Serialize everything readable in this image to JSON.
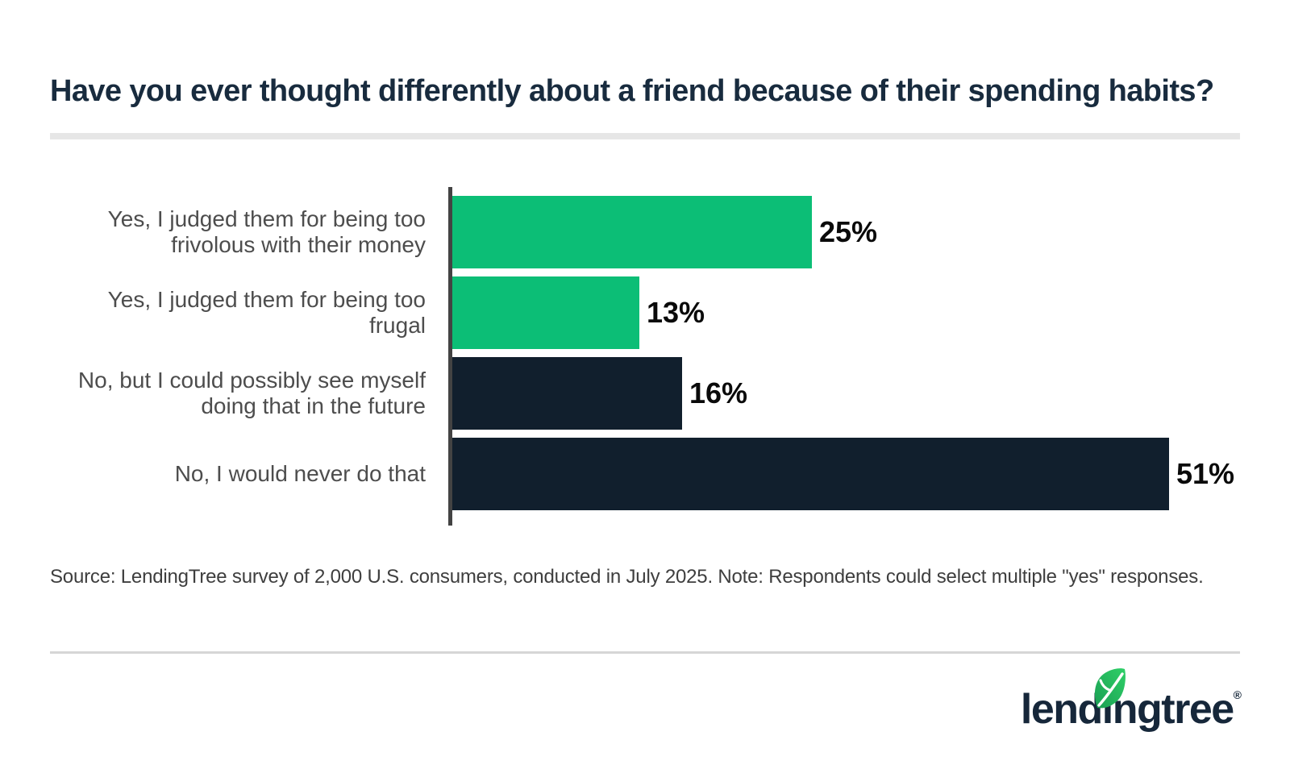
{
  "title": "Have you ever thought differently about a friend because of their spending habits?",
  "source_note": "Source: LendingTree survey of 2,000 U.S. consumers, conducted in July 2025. Note: Respondents could select multiple \"yes\" responses.",
  "logo": {
    "text": "lendingtree",
    "registered_mark": "®",
    "leaf_icon": "leaf-icon"
  },
  "colors": {
    "bar_green": "#0CBE76",
    "bar_navy": "#111F2D",
    "title_navy": "#182B3E",
    "category_label_gray": "#4D4D4D",
    "axis_gray": "#434343",
    "divider_light_gray": "#E6E6E6",
    "divider_thin_gray": "#D6D6D6",
    "value_label_black": "#0A0A0A",
    "logo_navy": "#16273A",
    "leaf_green_dark": "#1A9E53",
    "leaf_green_light": "#2FD068"
  },
  "chart_data": {
    "type": "bar",
    "orientation": "horizontal",
    "title": "Have you ever thought differently about a friend because of their spending habits?",
    "categories": [
      "Yes, I judged them for being too frivolous with their money",
      "Yes, I judged them for being too frugal",
      "No, but I could possibly see myself doing that in the future",
      "No, I would never do that"
    ],
    "values": [
      25,
      13,
      16,
      51
    ],
    "value_labels": [
      "25%",
      "13%",
      "16%",
      "51%"
    ],
    "bar_colors": [
      "#0CBE76",
      "#0CBE76",
      "#111F2D",
      "#111F2D"
    ],
    "xlabel": "",
    "ylabel": "",
    "xlim": [
      0,
      51
    ],
    "grid": false,
    "legend": false,
    "data_labels_position": "outside-end"
  }
}
